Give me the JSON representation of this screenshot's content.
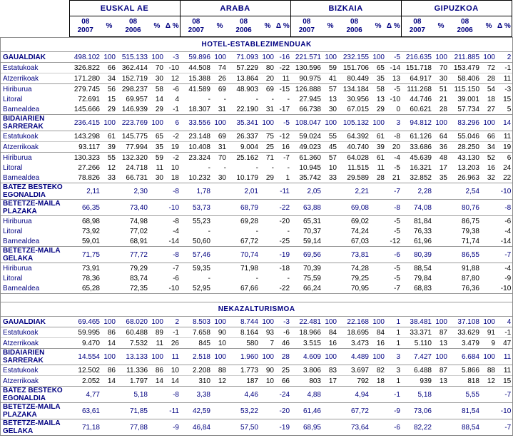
{
  "colors": {
    "accent_navy": "#000080",
    "number_text": "#000000",
    "grid_line": "#9a9a9a",
    "light_grid_line": "#cbcbcb",
    "header_border": "#000000",
    "background": "#ffffff"
  },
  "header": {
    "provinces": [
      "EUSKAL AE",
      "ARABA",
      "BIZKAIA",
      "GIPUZKOA"
    ],
    "subcols": [
      "08\n2007",
      "%",
      "08\n2006",
      "%",
      "Δ %"
    ]
  },
  "sections": [
    {
      "title": "HOTEL-ESTABLEZIMENDUAK",
      "rows": [
        {
          "label": "GAUALDIAK",
          "bold": true,
          "sep": "dark",
          "cells": [
            "498.102",
            "100",
            "515.133",
            "100",
            "-3",
            "59.896",
            "100",
            "71.093",
            "100",
            "-16",
            "221.571",
            "100",
            "232.155",
            "100",
            "-5",
            "216.635",
            "100",
            "211.885",
            "100",
            "2"
          ]
        },
        {
          "label": "Estatukoak",
          "bold": false,
          "sep": "dark",
          "cells": [
            "326.822",
            "66",
            "362.414",
            "70",
            "-10",
            "44.508",
            "74",
            "57.229",
            "80",
            "-22",
            "130.596",
            "59",
            "151.706",
            "65",
            "-14",
            "151.718",
            "70",
            "153.479",
            "72",
            "-1"
          ]
        },
        {
          "label": "Atzerrikoak",
          "bold": false,
          "sep": "light",
          "cells": [
            "171.280",
            "34",
            "152.719",
            "30",
            "12",
            "15.388",
            "26",
            "13.864",
            "20",
            "11",
            "90.975",
            "41",
            "80.449",
            "35",
            "13",
            "64.917",
            "30",
            "58.406",
            "28",
            "11"
          ]
        },
        {
          "label": "Hiriburua",
          "bold": false,
          "sep": "dark",
          "cells": [
            "279.745",
            "56",
            "298.237",
            "58",
            "-6",
            "41.589",
            "69",
            "48.903",
            "69",
            "-15",
            "126.888",
            "57",
            "134.184",
            "58",
            "-5",
            "111.268",
            "51",
            "115.150",
            "54",
            "-3"
          ]
        },
        {
          "label": "Litoral",
          "bold": false,
          "sep": null,
          "cells": [
            "72.691",
            "15",
            "69.957",
            "14",
            "4",
            "-",
            "-",
            "-",
            "-",
            "-",
            "27.945",
            "13",
            "30.956",
            "13",
            "-10",
            "44.746",
            "21",
            "39.001",
            "18",
            "15"
          ]
        },
        {
          "label": "Barnealdea",
          "bold": false,
          "sep": null,
          "cells": [
            "145.666",
            "29",
            "146.939",
            "29",
            "-1",
            "18.307",
            "31",
            "22.190",
            "31",
            "-17",
            "66.738",
            "30",
            "67.015",
            "29",
            "0",
            "60.621",
            "28",
            "57.734",
            "27",
            "5"
          ]
        },
        {
          "label": "BIDAIARIEN SARRERAK",
          "bold": true,
          "sep": "dark",
          "cells": [
            "236.415",
            "100",
            "223.769",
            "100",
            "6",
            "33.556",
            "100",
            "35.341",
            "100",
            "-5",
            "108.047",
            "100",
            "105.132",
            "100",
            "3",
            "94.812",
            "100",
            "83.296",
            "100",
            "14"
          ]
        },
        {
          "label": "Estatukoak",
          "bold": false,
          "sep": "dark",
          "cells": [
            "143.298",
            "61",
            "145.775",
            "65",
            "-2",
            "23.148",
            "69",
            "26.337",
            "75",
            "-12",
            "59.024",
            "55",
            "64.392",
            "61",
            "-8",
            "61.126",
            "64",
            "55.046",
            "66",
            "11"
          ]
        },
        {
          "label": "Atzerrikoak",
          "bold": false,
          "sep": "light",
          "cells": [
            "93.117",
            "39",
            "77.994",
            "35",
            "19",
            "10.408",
            "31",
            "9.004",
            "25",
            "16",
            "49.023",
            "45",
            "40.740",
            "39",
            "20",
            "33.686",
            "36",
            "28.250",
            "34",
            "19"
          ]
        },
        {
          "label": "Hiriburua",
          "bold": false,
          "sep": "dark",
          "cells": [
            "130.323",
            "55",
            "132.320",
            "59",
            "-2",
            "23.324",
            "70",
            "25.162",
            "71",
            "-7",
            "61.360",
            "57",
            "64.028",
            "61",
            "-4",
            "45.639",
            "48",
            "43.130",
            "52",
            "6"
          ]
        },
        {
          "label": "Litoral",
          "bold": false,
          "sep": null,
          "cells": [
            "27.266",
            "12",
            "24.718",
            "11",
            "10",
            "-",
            "-",
            "-",
            "-",
            "-",
            "10.945",
            "10",
            "11.515",
            "11",
            "-5",
            "16.321",
            "17",
            "13.203",
            "16",
            "24"
          ]
        },
        {
          "label": "Barnealdea",
          "bold": false,
          "sep": null,
          "cells": [
            "78.826",
            "33",
            "66.731",
            "30",
            "18",
            "10.232",
            "30",
            "10.179",
            "29",
            "1",
            "35.742",
            "33",
            "29.589",
            "28",
            "21",
            "32.852",
            "35",
            "26.963",
            "32",
            "22"
          ]
        },
        {
          "label": "BATEZ BESTEKO EGONALDIA",
          "bold": true,
          "sep": "dark",
          "cells": [
            "2,11",
            "",
            "2,30",
            "",
            "-8",
            "1,78",
            "",
            "2,01",
            "",
            "-11",
            "2,05",
            "",
            "2,21",
            "",
            "-7",
            "2,28",
            "",
            "2,54",
            "",
            "-10"
          ]
        },
        {
          "label": "BETETZE-MAILA PLAZAKA",
          "bold": true,
          "sep": "dark",
          "cells": [
            "66,35",
            "",
            "73,40",
            "",
            "-10",
            "53,73",
            "",
            "68,79",
            "",
            "-22",
            "63,88",
            "",
            "69,08",
            "",
            "-8",
            "74,08",
            "",
            "80,76",
            "",
            "-8"
          ]
        },
        {
          "label": "Hiriburua",
          "bold": false,
          "sep": "dark",
          "cells": [
            "68,98",
            "",
            "74,98",
            "",
            "-8",
            "55,23",
            "",
            "69,28",
            "",
            "-20",
            "65,31",
            "",
            "69,02",
            "",
            "-5",
            "81,84",
            "",
            "86,75",
            "",
            "-6"
          ]
        },
        {
          "label": "Litoral",
          "bold": false,
          "sep": null,
          "cells": [
            "73,92",
            "",
            "77,02",
            "",
            "-4",
            "-",
            "",
            "-",
            "",
            "-",
            "70,37",
            "",
            "74,24",
            "",
            "-5",
            "76,33",
            "",
            "79,38",
            "",
            "-4"
          ]
        },
        {
          "label": "Barnealdea",
          "bold": false,
          "sep": null,
          "cells": [
            "59,01",
            "",
            "68,91",
            "",
            "-14",
            "50,60",
            "",
            "67,72",
            "",
            "-25",
            "59,14",
            "",
            "67,03",
            "",
            "-12",
            "61,96",
            "",
            "71,74",
            "",
            "-14"
          ]
        },
        {
          "label": "BETETZE-MAILA GELAKA",
          "bold": true,
          "sep": "dark",
          "cells": [
            "71,75",
            "",
            "77,72",
            "",
            "-8",
            "57,46",
            "",
            "70,74",
            "",
            "-19",
            "69,56",
            "",
            "73,81",
            "",
            "-6",
            "80,39",
            "",
            "86,55",
            "",
            "-7"
          ]
        },
        {
          "label": "Hiriburua",
          "bold": false,
          "sep": "dark",
          "cells": [
            "73,91",
            "",
            "79,29",
            "",
            "-7",
            "59,35",
            "",
            "71,98",
            "",
            "-18",
            "70,39",
            "",
            "74,28",
            "",
            "-5",
            "88,54",
            "",
            "91,88",
            "",
            "-4"
          ]
        },
        {
          "label": "Litoral",
          "bold": false,
          "sep": null,
          "cells": [
            "78,36",
            "",
            "83,74",
            "",
            "-6",
            "-",
            "",
            "-",
            "",
            "-",
            "75,59",
            "",
            "79,25",
            "",
            "-5",
            "79,84",
            "",
            "87,80",
            "",
            "-9"
          ]
        },
        {
          "label": "Barnealdea",
          "bold": false,
          "sep": null,
          "cells": [
            "65,28",
            "",
            "72,35",
            "",
            "-10",
            "52,95",
            "",
            "67,66",
            "",
            "-22",
            "66,24",
            "",
            "70,95",
            "",
            "-7",
            "68,83",
            "",
            "76,36",
            "",
            "-10"
          ]
        }
      ]
    },
    {
      "title": "NEKAZALTURISMOA",
      "rows": [
        {
          "label": "GAUALDIAK",
          "bold": true,
          "sep": "dark",
          "cells": [
            "69.465",
            "100",
            "68.020",
            "100",
            "2",
            "8.503",
            "100",
            "8.744",
            "100",
            "-3",
            "22.481",
            "100",
            "22.168",
            "100",
            "1",
            "38.481",
            "100",
            "37.108",
            "100",
            "4"
          ]
        },
        {
          "label": "Estatukoak",
          "bold": false,
          "sep": "dark",
          "cells": [
            "59.995",
            "86",
            "60.488",
            "89",
            "-1",
            "7.658",
            "90",
            "8.164",
            "93",
            "-6",
            "18.966",
            "84",
            "18.695",
            "84",
            "1",
            "33.371",
            "87",
            "33.629",
            "91",
            "-1"
          ]
        },
        {
          "label": "Atzerrikoak",
          "bold": false,
          "sep": "light",
          "cells": [
            "9.470",
            "14",
            "7.532",
            "11",
            "26",
            "845",
            "10",
            "580",
            "7",
            "46",
            "3.515",
            "16",
            "3.473",
            "16",
            "1",
            "5.110",
            "13",
            "3.479",
            "9",
            "47"
          ]
        },
        {
          "label": "BIDAIARIEN SARRERAK",
          "bold": true,
          "sep": "dark",
          "cells": [
            "14.554",
            "100",
            "13.133",
            "100",
            "11",
            "2.518",
            "100",
            "1.960",
            "100",
            "28",
            "4.609",
            "100",
            "4.489",
            "100",
            "3",
            "7.427",
            "100",
            "6.684",
            "100",
            "11"
          ]
        },
        {
          "label": "Estatukoak",
          "bold": false,
          "sep": "dark",
          "cells": [
            "12.502",
            "86",
            "11.336",
            "86",
            "10",
            "2.208",
            "88",
            "1.773",
            "90",
            "25",
            "3.806",
            "83",
            "3.697",
            "82",
            "3",
            "6.488",
            "87",
            "5.866",
            "88",
            "11"
          ]
        },
        {
          "label": "Atzerrikoak",
          "bold": false,
          "sep": "light",
          "cells": [
            "2.052",
            "14",
            "1.797",
            "14",
            "14",
            "310",
            "12",
            "187",
            "10",
            "66",
            "803",
            "17",
            "792",
            "18",
            "1",
            "939",
            "13",
            "818",
            "12",
            "15"
          ]
        },
        {
          "label": "BATEZ BESTEKO EGONALDIA",
          "bold": true,
          "sep": "dark",
          "cells": [
            "4,77",
            "",
            "5,18",
            "",
            "-8",
            "3,38",
            "",
            "4,46",
            "",
            "-24",
            "4,88",
            "",
            "4,94",
            "",
            "-1",
            "5,18",
            "",
            "5,55",
            "",
            "-7"
          ]
        },
        {
          "label": "BETETZE-MAILA PLAZAKA",
          "bold": true,
          "sep": "dark",
          "cells": [
            "63,61",
            "",
            "71,85",
            "",
            "-11",
            "42,59",
            "",
            "53,22",
            "",
            "-20",
            "61,46",
            "",
            "67,72",
            "",
            "-9",
            "73,06",
            "",
            "81,54",
            "",
            "-10"
          ]
        },
        {
          "label": "BETETZE-MAILA GELAKA",
          "bold": true,
          "sep": "dark",
          "cells": [
            "71,18",
            "",
            "77,88",
            "",
            "-9",
            "46,84",
            "",
            "57,50",
            "",
            "-19",
            "68,95",
            "",
            "73,64",
            "",
            "-6",
            "82,22",
            "",
            "88,54",
            "",
            "-7"
          ]
        }
      ]
    }
  ]
}
